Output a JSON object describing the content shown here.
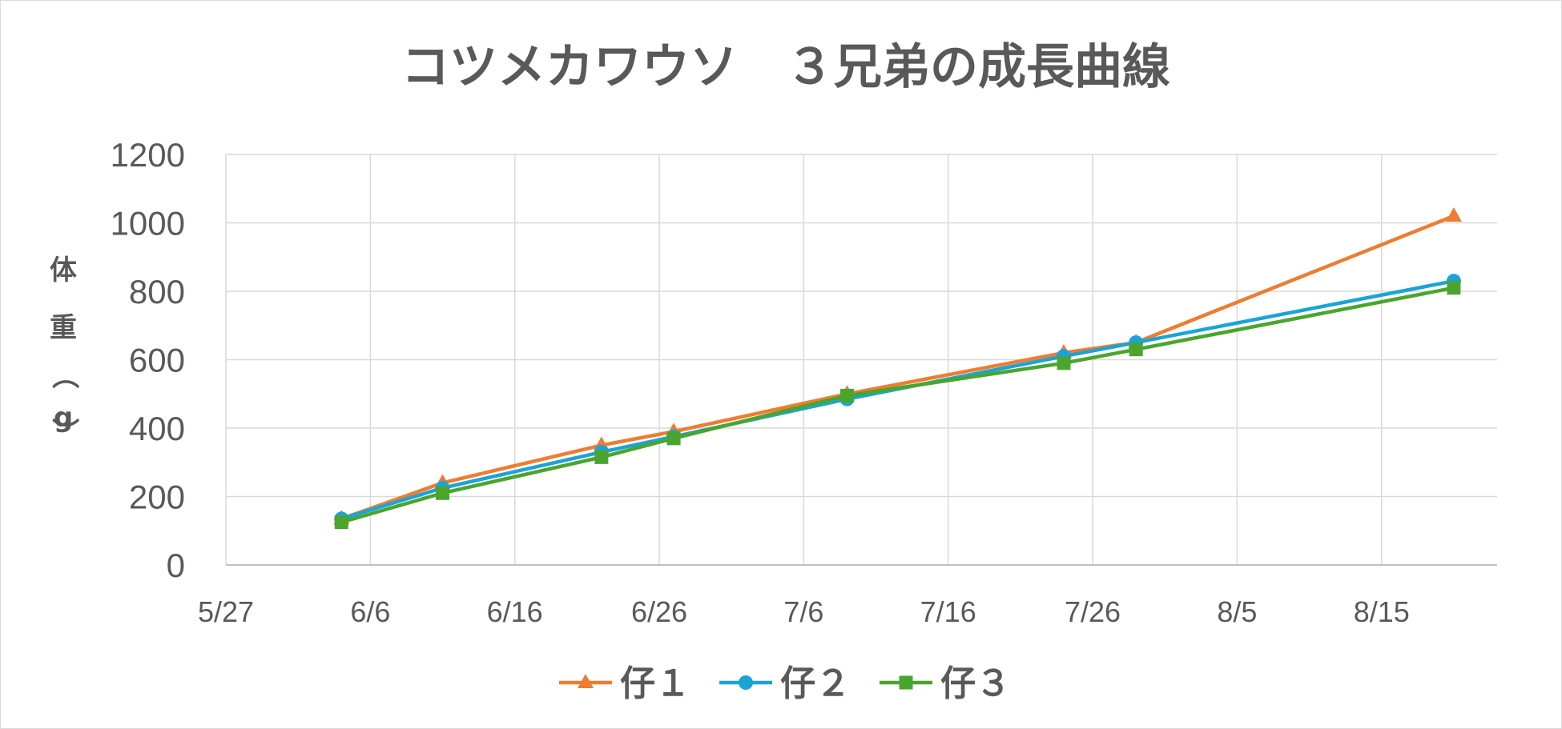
{
  "chart_data": {
    "type": "line",
    "title": "コツメカワウソ　３兄弟の成長曲線",
    "ylabel": "体重（g）",
    "ylabel_chars": [
      "体",
      "重",
      "（",
      "g",
      "）"
    ],
    "ylim": [
      0,
      1200
    ],
    "y_ticks": [
      0,
      200,
      400,
      600,
      800,
      1000,
      1200
    ],
    "y_tick_labels": [
      "0",
      "200",
      "400",
      "600",
      "800",
      "1000",
      "1200"
    ],
    "xlim": [
      "2019-05-27",
      "2019-08-23"
    ],
    "x_ticks": [
      "2019-05-27",
      "2019-06-06",
      "2019-06-16",
      "2019-06-26",
      "2019-07-06",
      "2019-07-16",
      "2019-07-26",
      "2019-08-05",
      "2019-08-15"
    ],
    "x_tick_labels": [
      "5/27",
      "6/6",
      "6/16",
      "6/26",
      "7/6",
      "7/16",
      "7/26",
      "8/5",
      "8/15"
    ],
    "grid": true,
    "legend_position": "bottom",
    "series": [
      {
        "name": "仔１",
        "color": "#ed7d31",
        "marker": "triangle",
        "points": [
          {
            "x": "2019-06-04",
            "y": 135
          },
          {
            "x": "2019-06-11",
            "y": 240
          },
          {
            "x": "2019-06-22",
            "y": 350
          },
          {
            "x": "2019-06-27",
            "y": 390
          },
          {
            "x": "2019-07-09",
            "y": 500
          },
          {
            "x": "2019-07-24",
            "y": 620
          },
          {
            "x": "2019-07-29",
            "y": 650
          },
          {
            "x": "2019-08-20",
            "y": 1020
          }
        ]
      },
      {
        "name": "仔２",
        "color": "#1ca3d6",
        "marker": "circle",
        "points": [
          {
            "x": "2019-06-04",
            "y": 135
          },
          {
            "x": "2019-06-11",
            "y": 225
          },
          {
            "x": "2019-06-22",
            "y": 330
          },
          {
            "x": "2019-06-27",
            "y": 375
          },
          {
            "x": "2019-07-09",
            "y": 485
          },
          {
            "x": "2019-07-24",
            "y": 610
          },
          {
            "x": "2019-07-29",
            "y": 650
          },
          {
            "x": "2019-08-20",
            "y": 830
          }
        ]
      },
      {
        "name": "仔３",
        "color": "#4aa52e",
        "marker": "square",
        "points": [
          {
            "x": "2019-06-04",
            "y": 125
          },
          {
            "x": "2019-06-11",
            "y": 210
          },
          {
            "x": "2019-06-22",
            "y": 315
          },
          {
            "x": "2019-06-27",
            "y": 370
          },
          {
            "x": "2019-07-09",
            "y": 495
          },
          {
            "x": "2019-07-24",
            "y": 590
          },
          {
            "x": "2019-07-29",
            "y": 630
          },
          {
            "x": "2019-08-20",
            "y": 810
          }
        ]
      }
    ]
  }
}
